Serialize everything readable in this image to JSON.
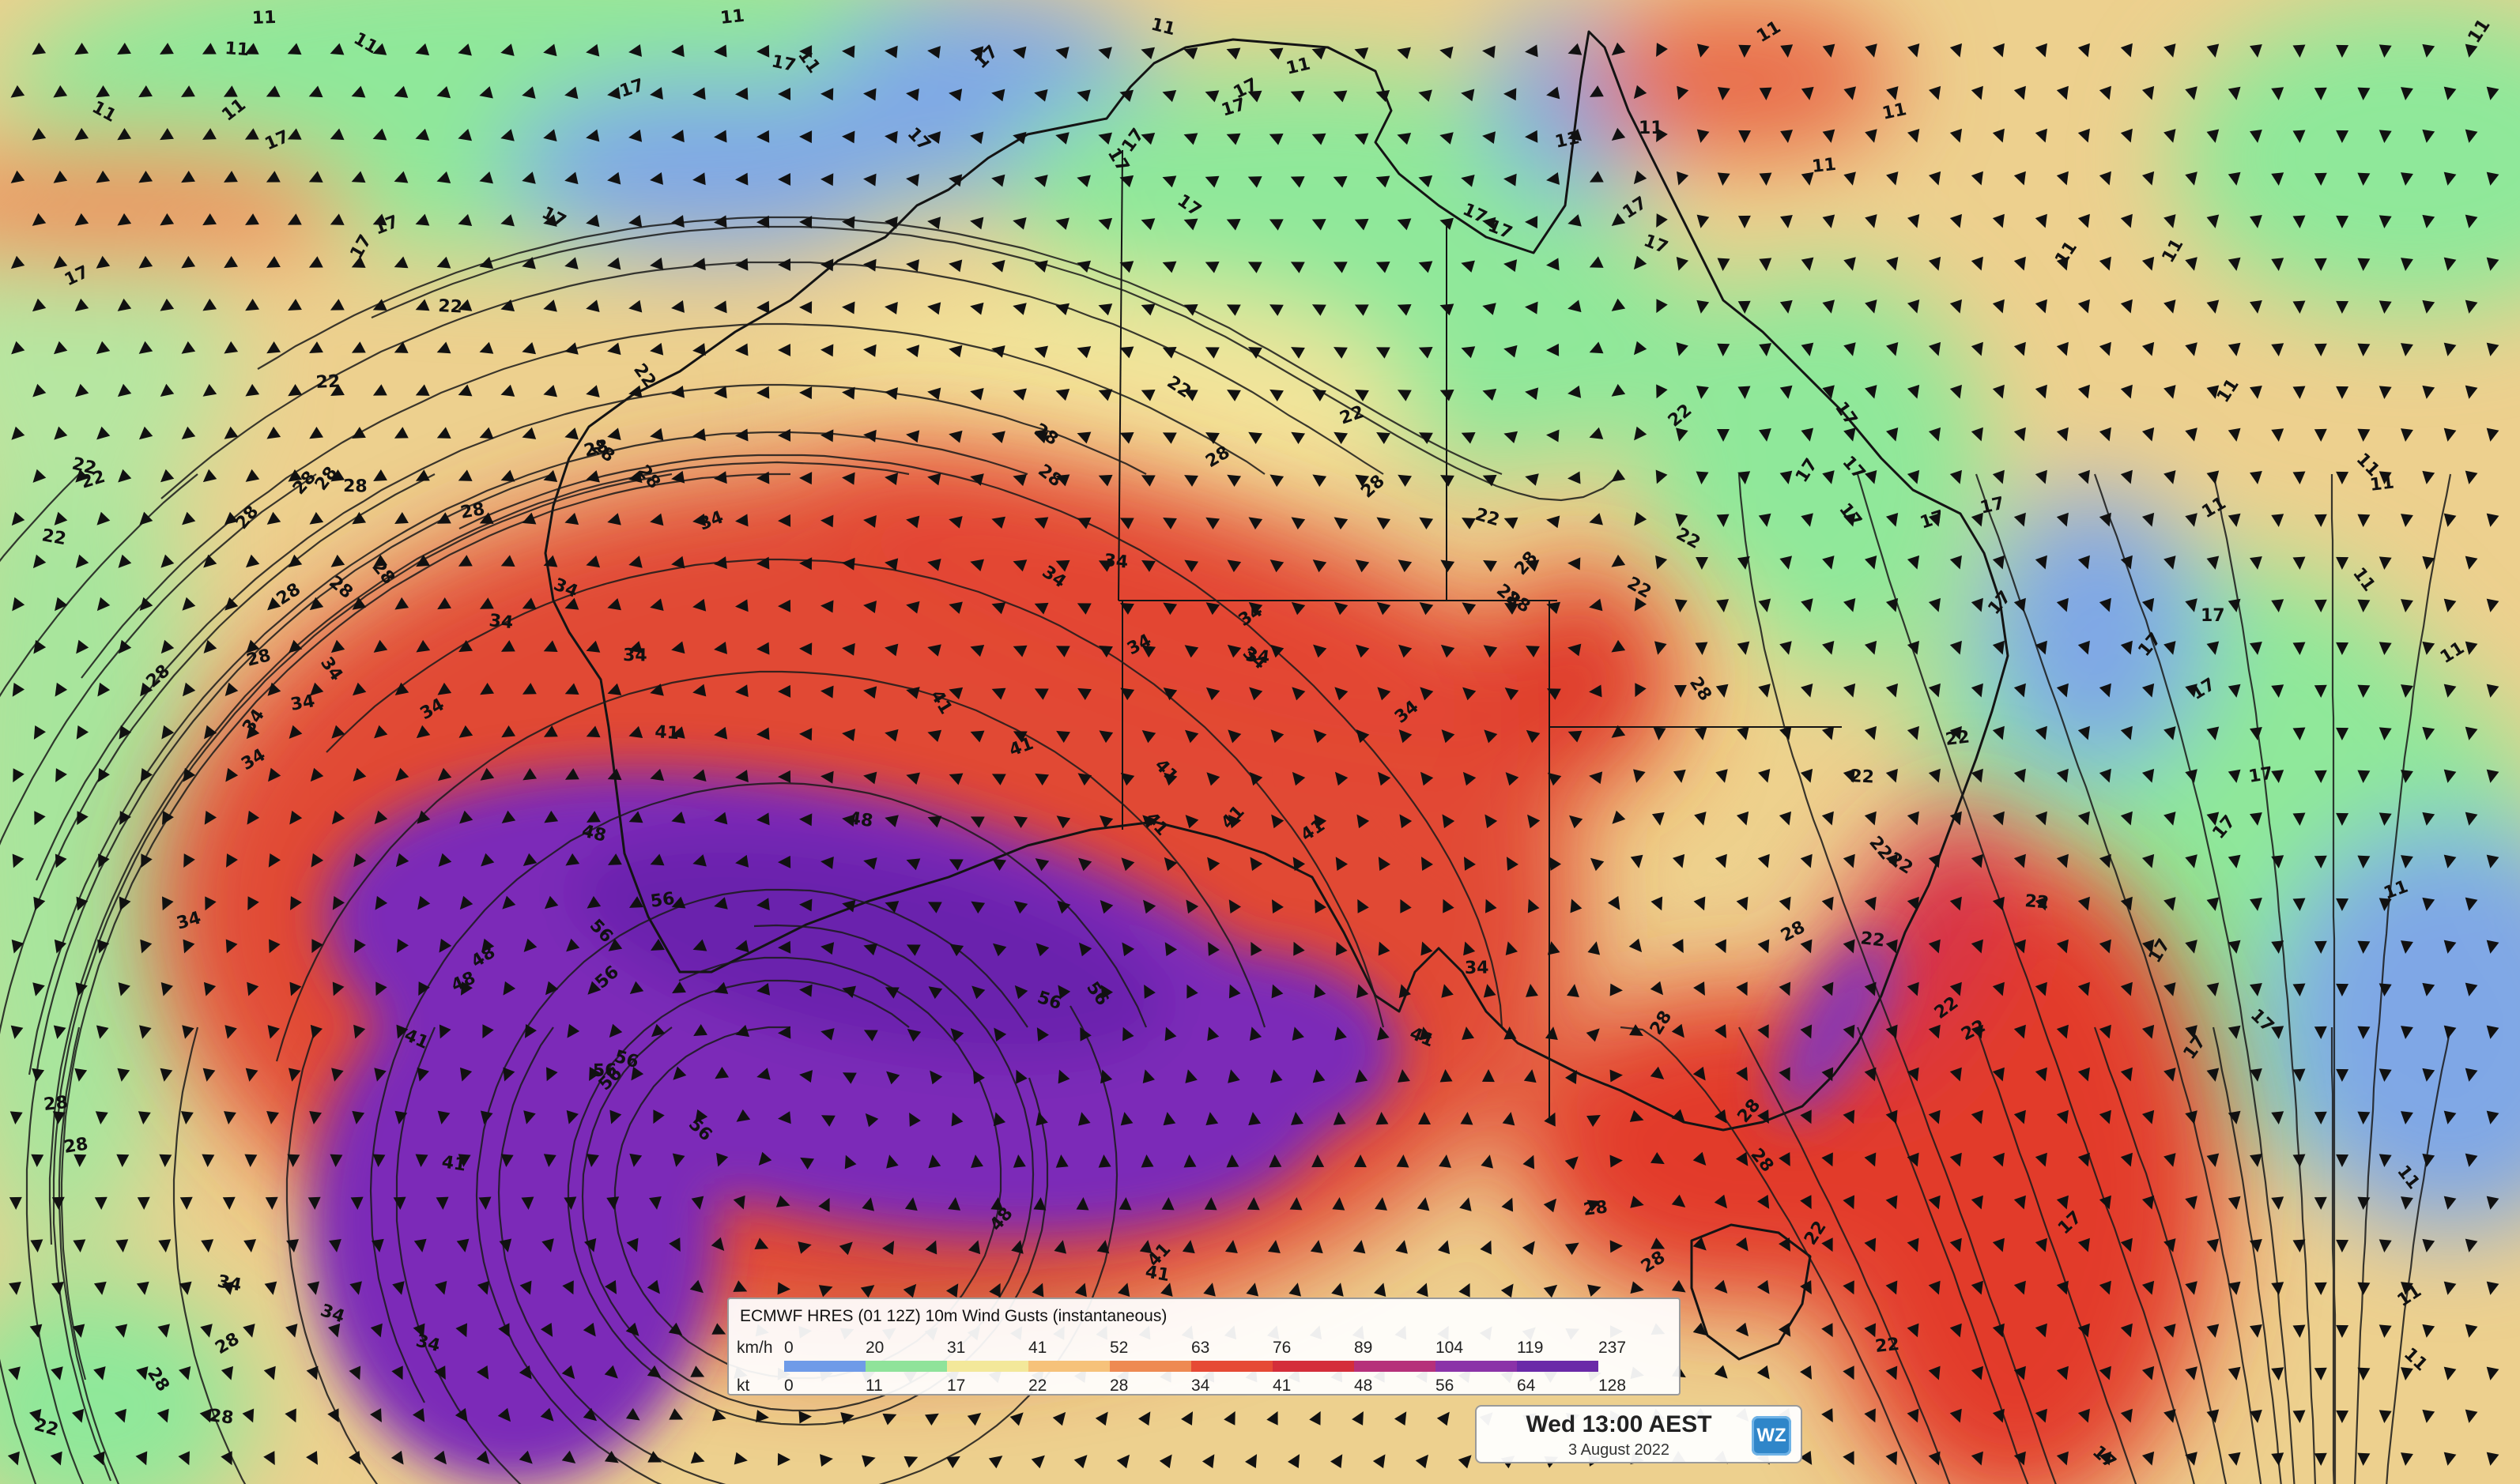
{
  "map": {
    "region": "Australia",
    "contour_labels": [
      "11",
      "17",
      "22",
      "28",
      "34",
      "41",
      "48",
      "56"
    ],
    "colors": {
      "blue": "#7fa7e6",
      "green": "#8fe89a",
      "yellow": "#f4ea9e",
      "orange": "#f0b968",
      "red": "#e23a2a",
      "purple": "#7b2bb8",
      "coastline": "#141414"
    }
  },
  "legend": {
    "title": "ECMWF HRES (01 12Z) 10m Wind Gusts (instantaneous)",
    "kmh_label": "km/h",
    "kt_label": "kt",
    "kmh_ticks": [
      "0",
      "20",
      "31",
      "41",
      "52",
      "63",
      "76",
      "89",
      "104",
      "119",
      "237"
    ],
    "kt_ticks": [
      "0",
      "11",
      "17",
      "22",
      "28",
      "34",
      "41",
      "48",
      "56",
      "64",
      "128"
    ],
    "colors": [
      "#6f9be8",
      "#8fe39a",
      "#f3e89a",
      "#f6c27a",
      "#ee8a52",
      "#e64a35",
      "#d42e3a",
      "#b6307a",
      "#8b33a8",
      "#6a2aa8",
      "#2f3e9e"
    ]
  },
  "time": {
    "label": "Wed 13:00 AEST",
    "date": "3 August 2022"
  },
  "logo": {
    "text": "WZ"
  }
}
